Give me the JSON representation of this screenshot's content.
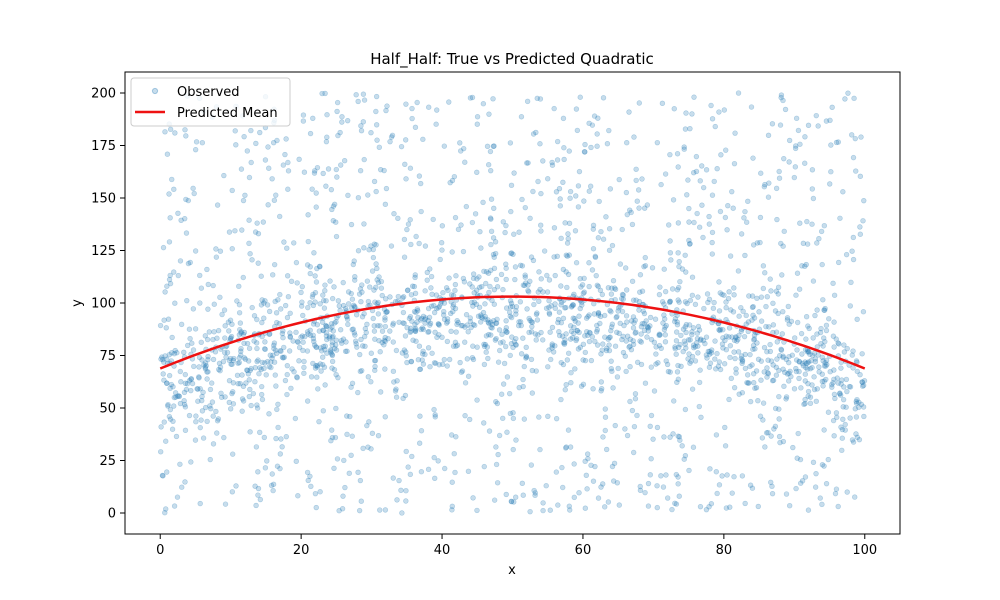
{
  "chart_data": {
    "type": "scatter",
    "title": "Half_Half: True vs Predicted Quadratic",
    "xlabel": "x",
    "ylabel": "y",
    "xlim": [
      -5,
      105
    ],
    "ylim": [
      -10,
      210
    ],
    "x_ticks": [
      0,
      20,
      40,
      60,
      80,
      100
    ],
    "y_ticks": [
      0,
      25,
      50,
      75,
      100,
      125,
      150,
      175,
      200
    ],
    "grid": false,
    "legend_position": "top-left",
    "series": [
      {
        "name": "Observed",
        "kind": "scatter",
        "color": "#1f77b4",
        "opacity": 0.25,
        "n_points": 2500,
        "distribution": "half uniform in y on [0, 200], half concentrated around the quadratic mean curve"
      },
      {
        "name": "Predicted Mean",
        "kind": "line",
        "color": "#ee1111",
        "quadratic_coefficients": {
          "a": -0.0137,
          "b": 1.37,
          "c": 68.8
        },
        "points": [
          [
            0,
            68.8
          ],
          [
            10,
            81.1
          ],
          [
            20,
            90.7
          ],
          [
            30,
            97.6
          ],
          [
            40,
            101.7
          ],
          [
            50,
            103.0
          ],
          [
            60,
            101.7
          ],
          [
            70,
            97.6
          ],
          [
            80,
            90.7
          ],
          [
            90,
            81.1
          ],
          [
            100,
            68.8
          ]
        ]
      }
    ]
  }
}
